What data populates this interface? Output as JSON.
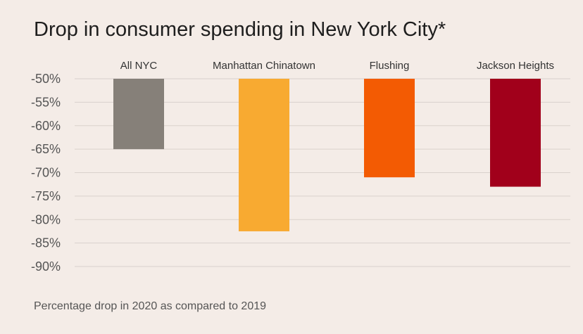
{
  "title": "Drop in consumer spending in New York City*",
  "footnote": "Percentage drop in 2020 as compared to 2019",
  "chart_data": {
    "type": "bar",
    "title": "Drop in consumer spending in New York City*",
    "xlabel": "",
    "ylabel": "",
    "categories": [
      "All NYC",
      "Manhattan Chinatown",
      "Flushing",
      "Jackson Heights"
    ],
    "values": [
      -65,
      -82.5,
      -71,
      -73
    ],
    "colors": [
      "#868079",
      "#f8aa31",
      "#f35b03",
      "#a1001b"
    ],
    "ylim": [
      -90,
      -50
    ],
    "yticks": [
      -50,
      -55,
      -60,
      -65,
      -70,
      -75,
      -80,
      -85,
      -90
    ],
    "ytick_labels": [
      "-50%",
      "-55%",
      "-60%",
      "-65%",
      "-70%",
      "-75%",
      "-80%",
      "-85%",
      "-90%"
    ],
    "grid": true,
    "legend": "none"
  }
}
